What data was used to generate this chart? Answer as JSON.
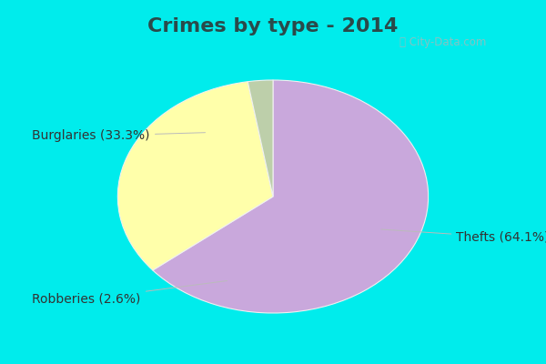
{
  "title": "Crimes by type - 2014",
  "slices": [
    {
      "label": "Thefts (64.1%)",
      "value": 64.1,
      "color": "#C9A8DC"
    },
    {
      "label": "Burglaries (33.3%)",
      "value": 33.3,
      "color": "#FFFFAA"
    },
    {
      "label": "Robberies (2.6%)",
      "value": 2.6,
      "color": "#BDCFAA"
    }
  ],
  "bg_cyan": "#00ECEC",
  "bg_inner": "#D8EEE4",
  "title_fontsize": 16,
  "label_fontsize": 10,
  "watermark": "ⓘ City-Data.com",
  "title_color": "#2A4A4A",
  "label_color": "#333333",
  "watermark_color": "#9BBCBC"
}
